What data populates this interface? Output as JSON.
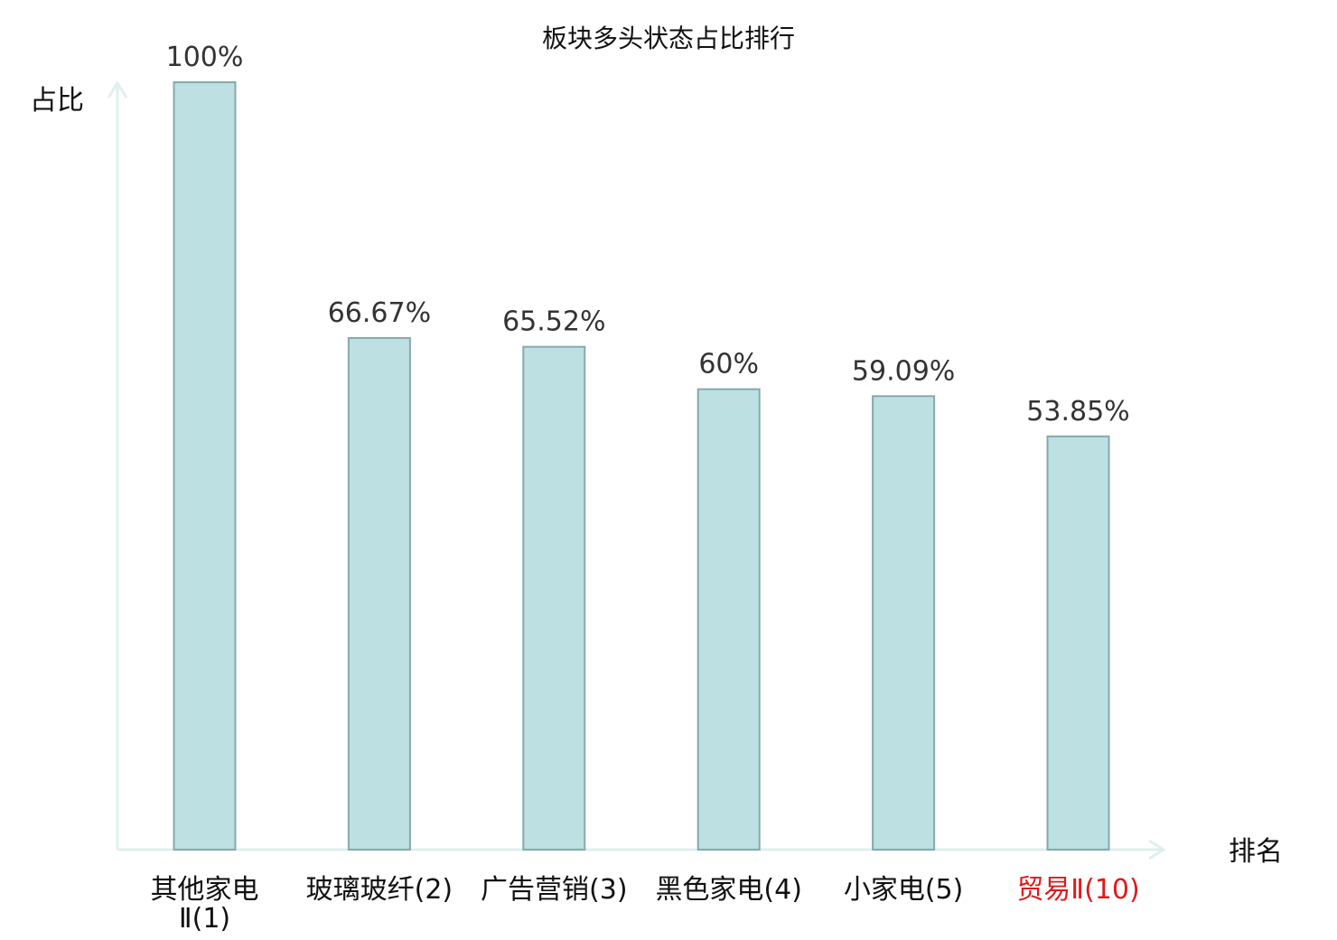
{
  "chart_data": {
    "type": "bar",
    "title": "板块多头状态占比排行",
    "ylabel": "占比",
    "xlabel": "排名",
    "categories": [
      {
        "lines": [
          "其他家电",
          "Ⅱ(1)"
        ],
        "highlight": false
      },
      {
        "lines": [
          "玻璃玻纤(2)"
        ],
        "highlight": false
      },
      {
        "lines": [
          "广告营销(3)"
        ],
        "highlight": false
      },
      {
        "lines": [
          "黑色家电(4)"
        ],
        "highlight": false
      },
      {
        "lines": [
          "小家电(5)"
        ],
        "highlight": false
      },
      {
        "lines": [
          "贸易Ⅱ(10)"
        ],
        "highlight": true
      }
    ],
    "values": [
      100,
      66.67,
      65.52,
      60,
      59.09,
      53.85
    ],
    "value_labels": [
      "100%",
      "66.67%",
      "65.52%",
      "60%",
      "59.09%",
      "53.85%"
    ],
    "ylim": [
      0,
      100
    ],
    "grid": false,
    "colors": {
      "bar_fill": "#bde0e3",
      "bar_stroke": "#87a9ab",
      "axis": "#dff0ee",
      "text": "#111111",
      "highlight": "#e0191b"
    }
  }
}
